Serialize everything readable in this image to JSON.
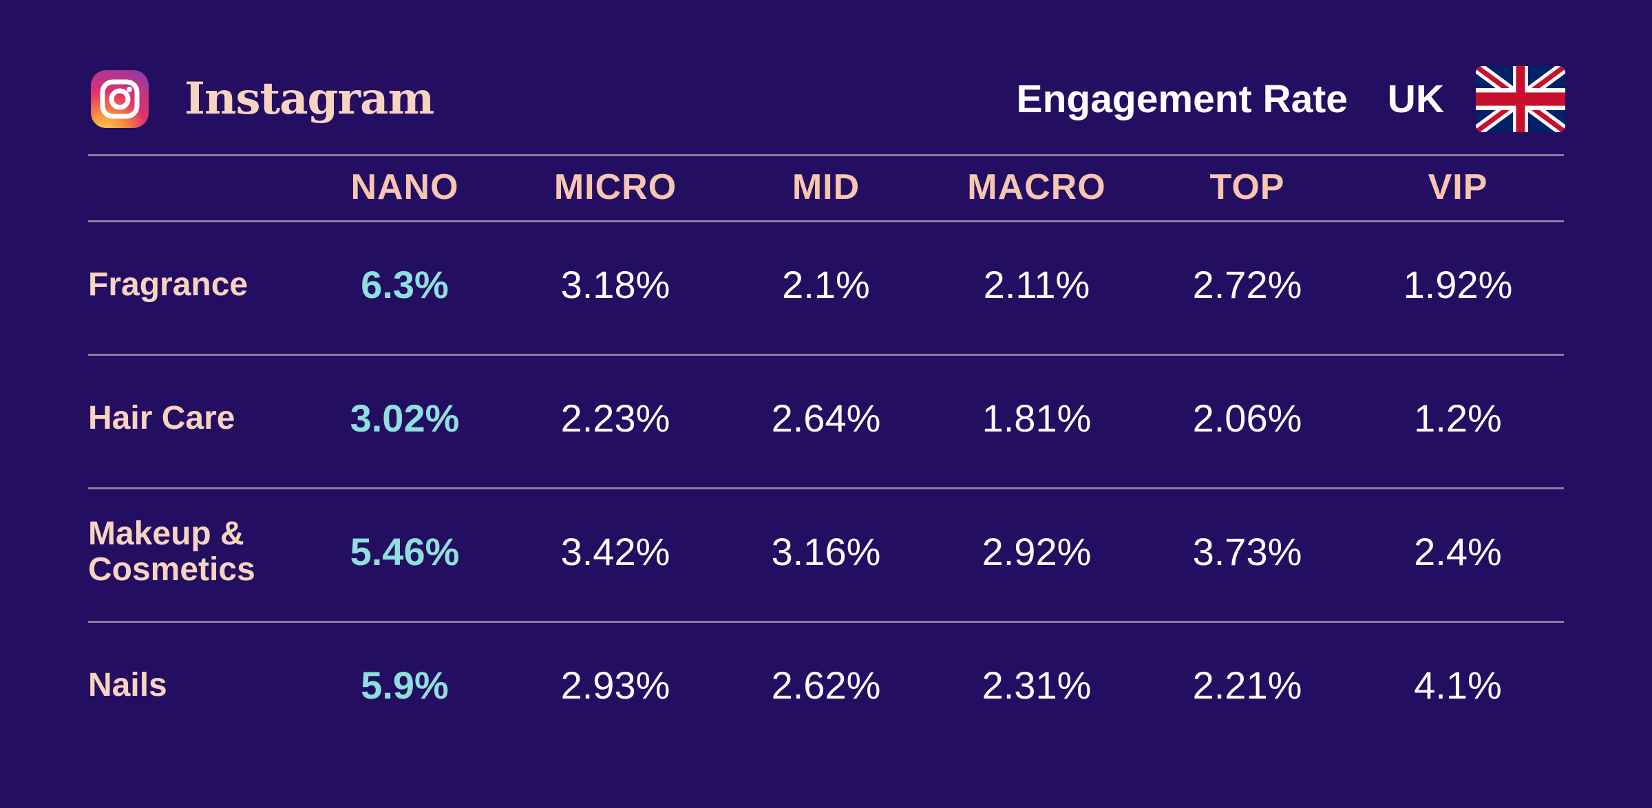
{
  "header": {
    "brand_name": "Instagram",
    "metric": "Engagement Rate",
    "region": "UK",
    "logo_icon": "instagram-icon",
    "flag_icon": "uk-flag-icon"
  },
  "colors": {
    "background": "#240e62",
    "highlight": "#8ee0dc",
    "label": "#f8d3bf",
    "value": "#ffffff",
    "rule": "#8f7a9e"
  },
  "chart_data": {
    "type": "table",
    "title": "Engagement Rate",
    "columns": [
      "NANO",
      "MICRO",
      "MID",
      "MACRO",
      "TOP",
      "VIP"
    ],
    "rows": [
      {
        "label_lines": [
          "Fragrance"
        ],
        "values": [
          "6.3%",
          "3.18%",
          "2.1%",
          "2.11%",
          "2.72%",
          "1.92%"
        ]
      },
      {
        "label_lines": [
          "Hair Care"
        ],
        "values": [
          "3.02%",
          "2.23%",
          "2.64%",
          "1.81%",
          "2.06%",
          "1.2%"
        ]
      },
      {
        "label_lines": [
          "Makeup &",
          "Cosmetics"
        ],
        "values": [
          "5.46%",
          "3.42%",
          "3.16%",
          "2.92%",
          "3.73%",
          "2.4%"
        ]
      },
      {
        "label_lines": [
          "Nails"
        ],
        "values": [
          "5.9%",
          "2.93%",
          "2.62%",
          "2.31%",
          "2.21%",
          "4.1%"
        ]
      }
    ],
    "highlighted_column": "NANO"
  }
}
